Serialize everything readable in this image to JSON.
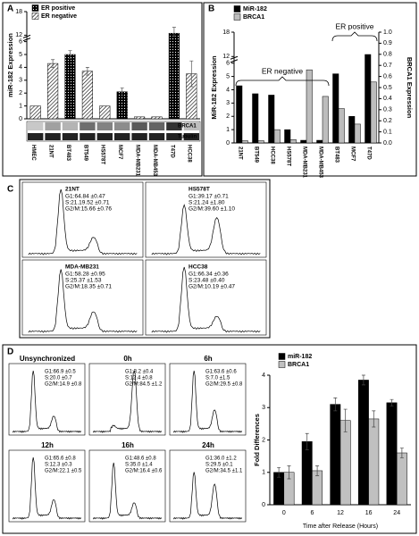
{
  "panel_labels": [
    "A",
    "B",
    "C",
    "D"
  ],
  "chart_data": [
    {
      "type": "bar",
      "y_label": "miR-182 Expression",
      "categories": [
        "HMEC",
        "21NT",
        "BT483",
        "BT549",
        "HS578T",
        "MCF7",
        "MDA-MB231",
        "MDA-MB453",
        "T47D",
        "HCC38"
      ],
      "series": [
        {
          "name": "ER positive",
          "pattern": "dots",
          "values": [
            null,
            null,
            5.0,
            null,
            null,
            2.1,
            null,
            null,
            12.5,
            null
          ],
          "errors": [
            null,
            null,
            0.3,
            null,
            null,
            0.3,
            null,
            null,
            1.5,
            null
          ]
        },
        {
          "name": "ER negative",
          "pattern": "hatch",
          "values": [
            1.0,
            4.3,
            null,
            3.7,
            1.0,
            null,
            0.15,
            0.15,
            null,
            3.5
          ],
          "errors": [
            null,
            0.3,
            null,
            0.3,
            null,
            null,
            null,
            null,
            null,
            1.0
          ]
        }
      ],
      "ylim": [
        0,
        18
      ],
      "yticks": [
        0,
        1,
        2,
        3,
        4,
        5,
        6,
        12,
        18
      ],
      "y_break": [
        6,
        12
      ],
      "blot_labels": [
        "BRCA1",
        "Tubulin"
      ]
    },
    {
      "type": "bar",
      "y_label": "MiR-182 Expression",
      "y2_label": "BRCA1 Expression",
      "categories": [
        "21NT",
        "BT549",
        "HCC38",
        "HS578T",
        "MDA-MB231",
        "MDA-MB453",
        "BT483",
        "MCF7",
        "T47D"
      ],
      "series": [
        {
          "name": "MiR-182",
          "color": "#000000",
          "values": [
            4.3,
            3.7,
            3.6,
            1.0,
            0.2,
            0.2,
            5.2,
            2.0,
            12.5
          ]
        },
        {
          "name": "BRCA1",
          "color": "#bdbdbd",
          "axis": "y2",
          "values": [
            0.02,
            0.02,
            0.12,
            0.03,
            0.66,
            0.42,
            0.31,
            0.17,
            0.55
          ]
        }
      ],
      "ylim": [
        0,
        18
      ],
      "yticks": [
        0,
        1,
        2,
        3,
        4,
        5,
        6,
        12,
        18
      ],
      "y_break": [
        6,
        12
      ],
      "y2lim": [
        0,
        1
      ],
      "y2ticks": [
        {
          "value": 0,
          "label": "0.0"
        },
        0.1,
        0.2,
        0.3,
        0.4,
        0.5,
        0.6,
        0.7,
        0.8,
        0.9,
        {
          "value": 1,
          "label": "1.0"
        }
      ],
      "annotations": [
        "ER negative",
        "ER positive"
      ]
    },
    {
      "type": "bar",
      "y_label": "Fold Differences",
      "x_label": "Time after Release (Hours)",
      "categories": [
        "0",
        "6",
        "12",
        "16",
        "24"
      ],
      "series": [
        {
          "name": "miR-182",
          "color": "#000000",
          "values": [
            1.0,
            1.95,
            3.1,
            3.85,
            3.15
          ],
          "errors": [
            0.15,
            0.25,
            0.2,
            0.15,
            0.1
          ]
        },
        {
          "name": "BRCA1",
          "color": "#c0c0c0",
          "values": [
            1.0,
            1.05,
            2.6,
            2.65,
            1.6
          ],
          "errors": [
            0.2,
            0.15,
            0.35,
            0.25,
            0.15
          ]
        }
      ],
      "ylim": [
        0,
        4
      ],
      "yticks": [
        0,
        1,
        2,
        3,
        4
      ]
    }
  ],
  "flow_panels": [
    {
      "title": "21NT",
      "lines": [
        "G1:64.84 ±0.47",
        "S:21.19.52 ±0.71",
        "G2/M:15.66 ±0.76"
      ]
    },
    {
      "title": "HS578T",
      "lines": [
        "G1:39.17 ±0.71",
        "S:21.24 ±1.80",
        "G2/M:39.60 ±1.10"
      ]
    },
    {
      "title": "MDA-MB231",
      "lines": [
        "G1:58.28 ±0.95",
        "S:25.37 ±1.53",
        "G2/M:18.35 ±0.71"
      ]
    },
    {
      "title": "HCC38",
      "lines": [
        "G1:66.34 ±0.36",
        "S:23.48 ±0.40",
        "G2/M:10.19 ±0.47"
      ]
    }
  ],
  "time_course_panels": [
    {
      "title": "Unsynchronized",
      "lines": [
        "G1:66.9 ±0.5",
        "S:20.0 ±0.7",
        "G2/M:14.9 ±0.8"
      ]
    },
    {
      "title": "0h",
      "lines": [
        "G1:3.2 ±0.4",
        "S:12.4 ±0.8",
        "G2/M:84.5 ±1.2"
      ]
    },
    {
      "title": "6h",
      "lines": [
        "G1:63.6 ±0.6",
        "S:7.0 ±1.5",
        "G2/M:29.5 ±0.8"
      ]
    },
    {
      "title": "12h",
      "lines": [
        "G1:65.6 ±0.8",
        "S:12.3 ±0.3",
        "G2/M:22.1 ±0.5"
      ]
    },
    {
      "title": "16h",
      "lines": [
        "G1:48.6 ±0.8",
        "S:35.0 ±1.4",
        "G2/M:16.4 ±0.6"
      ]
    },
    {
      "title": "24h",
      "lines": [
        "G1:36.0 ±1.2",
        "S:29.5 ±0.1",
        "G2/M:34.5 ±1.1"
      ]
    }
  ]
}
